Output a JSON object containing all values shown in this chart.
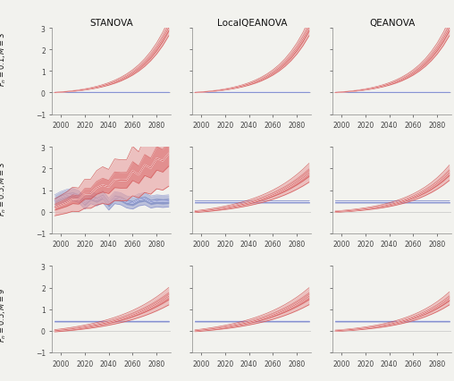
{
  "title_cols": [
    "STANOVA",
    "LocalQEANOVA",
    "QEANOVA"
  ],
  "row_labels": [
    "$F_n = 0.1; M = 3$",
    "$F_n = 0.5; M = 3$",
    "$F_n = 0.5; M = 9$"
  ],
  "ylim": [
    -1,
    3
  ],
  "yticks": [
    -1,
    0,
    1,
    2,
    3
  ],
  "xticks": [
    2000,
    2020,
    2040,
    2060,
    2080
  ],
  "year_start": 1995,
  "year_end": 2090,
  "red_color": "#cc3333",
  "red_fill_outer": "#e8a0a0",
  "red_fill_inner": "#d96060",
  "blue_color": "#4455bb",
  "blue_fill_outer": "#9099cc",
  "blue_fill_inner": "#6677bb",
  "white_color": "#ffffff",
  "background": "#f2f2ee"
}
